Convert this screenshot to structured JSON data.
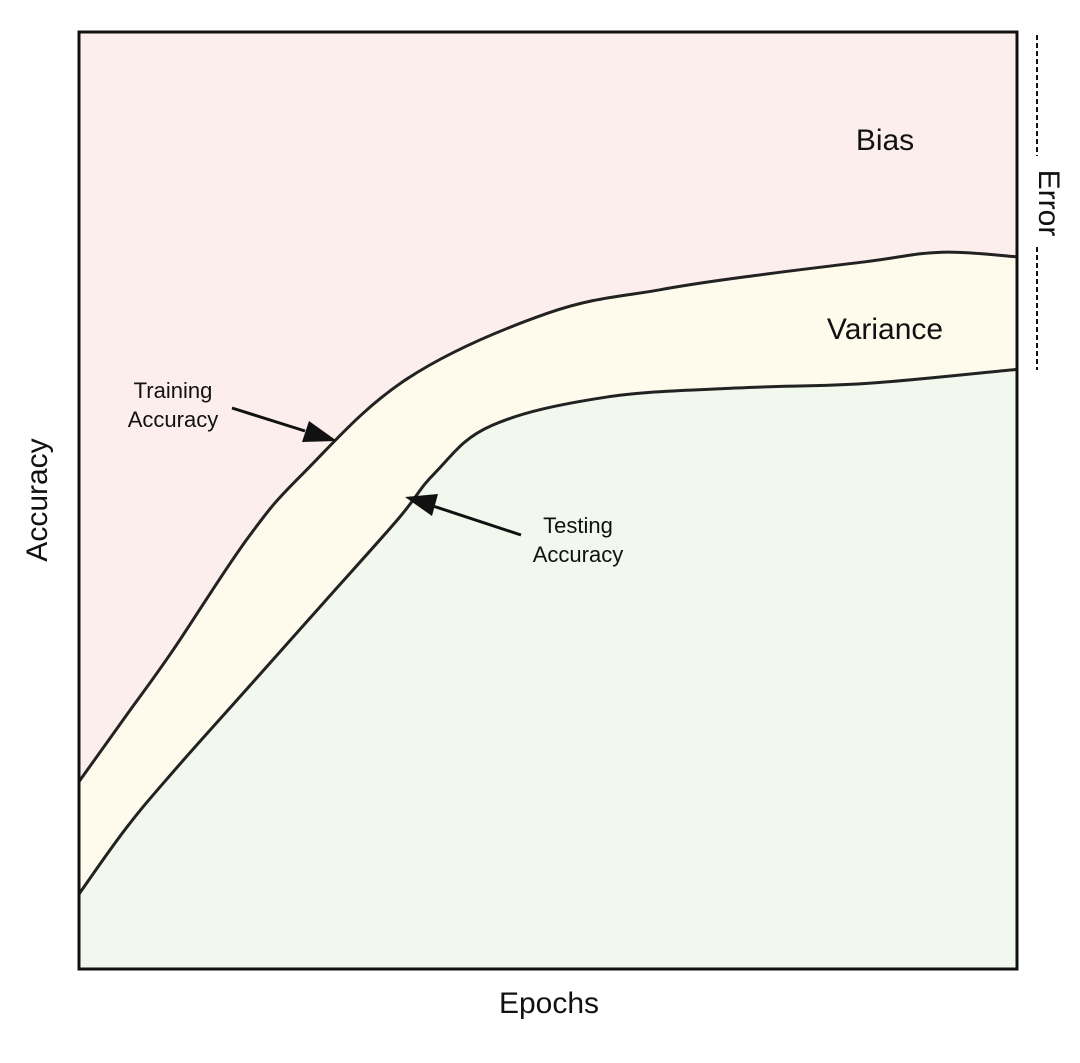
{
  "chart_data": {
    "type": "area",
    "xlabel": "Epochs",
    "ylabel": "Accuracy",
    "grid": false,
    "axes_ticks": false,
    "region_colors": {
      "bias": "#fdeeee",
      "variance": "#fefbed",
      "testing": "#f2f8ed"
    },
    "line_color": "#222222",
    "x_range": [
      0,
      1
    ],
    "y_range": [
      0,
      1
    ],
    "series": [
      {
        "name": "Training Accuracy",
        "x": [
          0,
          0.05,
          0.1,
          0.18,
          0.24,
          0.35,
          0.5,
          0.62,
          0.72,
          0.84,
          0.92,
          1
        ],
        "values": [
          0.2,
          0.27,
          0.34,
          0.46,
          0.53,
          0.63,
          0.7,
          0.725,
          0.74,
          0.755,
          0.765,
          0.76
        ]
      },
      {
        "name": "Testing Accuracy",
        "x": [
          0,
          0.05,
          0.1,
          0.18,
          0.26,
          0.34,
          0.38,
          0.44,
          0.56,
          0.7,
          0.84,
          1
        ],
        "values": [
          0.08,
          0.15,
          0.21,
          0.3,
          0.39,
          0.48,
          0.53,
          0.58,
          0.61,
          0.62,
          0.625,
          0.64
        ]
      }
    ],
    "annotations": {
      "bias": "Bias",
      "variance": "Variance",
      "error": "Error",
      "training_line1": "Training",
      "training_line2": "Accuracy",
      "testing_line1": "Testing",
      "testing_line2": "Accuracy"
    }
  }
}
